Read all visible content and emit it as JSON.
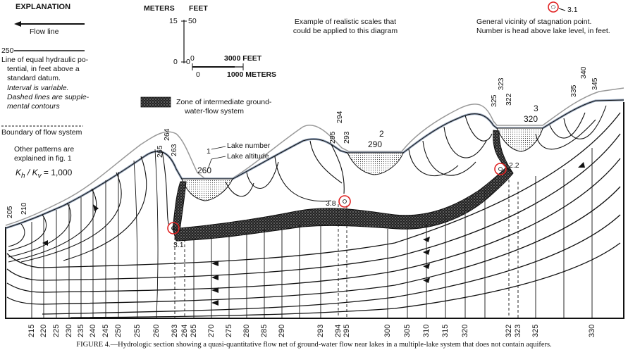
{
  "explanation": {
    "title": "EXPLANATION",
    "flow_line": "Flow line",
    "contour_value": "250",
    "contour_lines": [
      "Line of equal hydraulic po-",
      "tential, in feet above a",
      "standard datum."
    ],
    "contour_notes": [
      "Interval is variable.",
      "Dashed lines are supple-",
      "mental contours"
    ],
    "boundary": "Boundary of flow system",
    "other_patterns": [
      "Other patterns are",
      "explained in fig. 1"
    ],
    "anisotropy_lhs": "K",
    "anisotropy_sub1": "h",
    "anisotropy_sep": " / K",
    "anisotropy_sub2": "v",
    "anisotropy_rhs": " = 1,000"
  },
  "scale": {
    "meters_header": "METERS",
    "feet_header": "FEET",
    "meters_top": "15",
    "feet_top": "50",
    "meters_zero": "0",
    "feet_zero": "0",
    "h_feet_zero": "0",
    "h_feet_value": "3000 FEET",
    "h_meters_zero": "0",
    "h_meters_value": "1000 METERS",
    "note": [
      "Example of realistic scales that",
      "could be applied to this diagram"
    ]
  },
  "stagnation": {
    "example_value": "3.1",
    "legend": [
      "General vicinity of stagnation point.",
      "Number is head above lake level, in feet."
    ],
    "points": [
      "3.1",
      "3.8",
      "2.2"
    ]
  },
  "zone": {
    "legend": [
      "Zone of intermediate ground-",
      "water-flow system"
    ]
  },
  "lakes": [
    {
      "number": "1",
      "altitude": "260"
    },
    {
      "number": "2",
      "altitude": "290"
    },
    {
      "number": "3",
      "altitude": "320"
    }
  ],
  "lake_labels": {
    "number": "Lake number",
    "altitude": "Lake altitude"
  },
  "top_contours": {
    "group_205": [
      "205",
      "210"
    ],
    "group_263": [
      "265",
      "264",
      "263"
    ],
    "group_293": [
      "295",
      "294",
      "293"
    ],
    "group_320": [
      "325",
      "323",
      "322"
    ],
    "group_335": [
      "335",
      "340",
      "345"
    ]
  },
  "bottom_axis": [
    "215",
    "220",
    "225",
    "230",
    "235",
    "240",
    "245",
    "250",
    "255",
    "260",
    "263",
    "264",
    "265",
    "270",
    "275",
    "280",
    "285",
    "290",
    "293",
    "294",
    "295",
    "300",
    "305",
    "310",
    "315",
    "320",
    "322",
    "323",
    "325",
    "330"
  ],
  "caption": "FIGURE 4.—Hydrologic section showing a quasi-quantitative flow net of ground-water flow near lakes in a multiple-lake system that does not contain aquifers.",
  "colors": {
    "stagnation_circle": "#e02020",
    "water_table": "#8fa0b8",
    "profile": "#999999",
    "ink": "#111111"
  }
}
